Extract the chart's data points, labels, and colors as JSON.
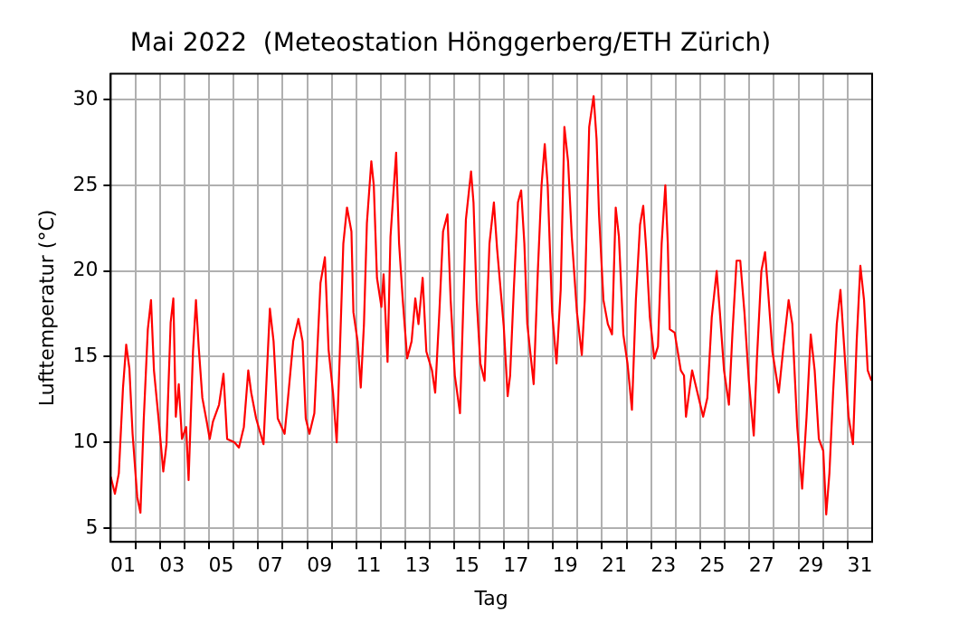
{
  "chart_data": {
    "type": "line",
    "title": "Mai 2022  (Meteostation Hönggerberg/ETH Zürich)",
    "xlabel": "Tag",
    "ylabel": "Lufttemperatur (°C)",
    "xlim": [
      0,
      31
    ],
    "ylim": [
      4.2,
      31.5
    ],
    "xticks": [
      {
        "value": 0.5,
        "label": "01"
      },
      {
        "value": 2.5,
        "label": "03"
      },
      {
        "value": 4.5,
        "label": "05"
      },
      {
        "value": 6.5,
        "label": "07"
      },
      {
        "value": 8.5,
        "label": "09"
      },
      {
        "value": 10.5,
        "label": "11"
      },
      {
        "value": 12.5,
        "label": "13"
      },
      {
        "value": 14.5,
        "label": "15"
      },
      {
        "value": 16.5,
        "label": "17"
      },
      {
        "value": 18.5,
        "label": "19"
      },
      {
        "value": 20.5,
        "label": "21"
      },
      {
        "value": 22.5,
        "label": "23"
      },
      {
        "value": 24.5,
        "label": "25"
      },
      {
        "value": 26.5,
        "label": "27"
      },
      {
        "value": 28.5,
        "label": "29"
      },
      {
        "value": 30.5,
        "label": "31"
      },
      {
        "value": 1,
        "label": null
      },
      {
        "value": 2,
        "label": null
      },
      {
        "value": 3,
        "label": null
      },
      {
        "value": 4,
        "label": null
      },
      {
        "value": 5,
        "label": null
      },
      {
        "value": 6,
        "label": null
      },
      {
        "value": 7,
        "label": null
      },
      {
        "value": 8,
        "label": null
      },
      {
        "value": 9,
        "label": null
      },
      {
        "value": 10,
        "label": null
      },
      {
        "value": 11,
        "label": null
      },
      {
        "value": 12,
        "label": null
      },
      {
        "value": 13,
        "label": null
      },
      {
        "value": 14,
        "label": null
      },
      {
        "value": 15,
        "label": null
      },
      {
        "value": 16,
        "label": null
      },
      {
        "value": 17,
        "label": null
      },
      {
        "value": 18,
        "label": null
      },
      {
        "value": 19,
        "label": null
      },
      {
        "value": 20,
        "label": null
      },
      {
        "value": 21,
        "label": null
      },
      {
        "value": 22,
        "label": null
      },
      {
        "value": 23,
        "label": null
      },
      {
        "value": 24,
        "label": null
      },
      {
        "value": 25,
        "label": null
      },
      {
        "value": 26,
        "label": null
      },
      {
        "value": 27,
        "label": null
      },
      {
        "value": 28,
        "label": null
      },
      {
        "value": 29,
        "label": null
      },
      {
        "value": 30,
        "label": null
      }
    ],
    "yticks": [
      5,
      10,
      15,
      20,
      25,
      30
    ],
    "grid": true,
    "legend": false,
    "marker": "none",
    "line_style": "solid",
    "series": [
      {
        "color": "#ff0000",
        "x": [
          0,
          0.17,
          0.33,
          0.5,
          0.63,
          0.76,
          0.89,
          1.08,
          1.21,
          1.34,
          1.51,
          1.64,
          1.76,
          1.94,
          2.14,
          2.27,
          2.44,
          2.55,
          2.65,
          2.77,
          2.9,
          3.07,
          3.17,
          3.35,
          3.47,
          3.58,
          3.73,
          3.91,
          4.03,
          4.16,
          4.41,
          4.59,
          4.74,
          5.04,
          5.22,
          5.42,
          5.6,
          5.72,
          5.92,
          6.22,
          6.48,
          6.63,
          6.8,
          7.08,
          7.18,
          7.43,
          7.64,
          7.81,
          7.94,
          8.09,
          8.29,
          8.54,
          8.72,
          8.87,
          9.05,
          9.2,
          9.32,
          9.47,
          9.62,
          9.8,
          9.88,
          10.05,
          10.18,
          10.31,
          10.43,
          10.61,
          10.71,
          10.84,
          11.02,
          11.11,
          11.27,
          11.39,
          11.62,
          11.74,
          11.89,
          12.07,
          12.25,
          12.4,
          12.53,
          12.7,
          12.85,
          13.08,
          13.21,
          13.38,
          13.53,
          13.71,
          13.84,
          14.01,
          14.22,
          14.46,
          14.67,
          14.77,
          14.9,
          15.05,
          15.22,
          15.42,
          15.6,
          15.73,
          16.0,
          16.16,
          16.26,
          16.41,
          16.58,
          16.71,
          16.84,
          16.96,
          17.22,
          17.39,
          17.54,
          17.67,
          17.79,
          17.97,
          18.15,
          18.32,
          18.47,
          18.62,
          18.77,
          18.98,
          19.18,
          19.3,
          19.48,
          19.66,
          19.78,
          19.88,
          20.06,
          20.24,
          20.41,
          20.56,
          20.69,
          20.87,
          21.04,
          21.22,
          21.38,
          21.55,
          21.68,
          21.8,
          21.95,
          22.13,
          22.28,
          22.43,
          22.58,
          22.68,
          22.76,
          22.96,
          23.21,
          23.34,
          23.42,
          23.67,
          23.92,
          24.12,
          24.29,
          24.47,
          24.67,
          24.8,
          24.97,
          25.17,
          25.31,
          25.48,
          25.63,
          25.8,
          25.98,
          26.18,
          26.31,
          26.49,
          26.64,
          26.76,
          26.94,
          27.2,
          27.39,
          27.6,
          27.75,
          27.95,
          28.15,
          28.33,
          28.5,
          28.66,
          28.83,
          29.01,
          29.13,
          29.26,
          29.41,
          29.56,
          29.71,
          29.86,
          30.04,
          30.22,
          30.37,
          30.52,
          30.67,
          30.82,
          30.97
        ],
        "values": [
          8.0,
          7.0,
          8.2,
          13.2,
          15.7,
          14.3,
          10.5,
          6.8,
          5.9,
          11.2,
          16.6,
          18.3,
          14.2,
          11.5,
          8.3,
          9.9,
          17.0,
          18.4,
          11.5,
          13.4,
          10.2,
          10.9,
          7.8,
          15.3,
          18.3,
          15.6,
          12.6,
          11.2,
          10.2,
          11.2,
          12.2,
          14.0,
          10.2,
          10.0,
          9.7,
          10.9,
          14.2,
          12.9,
          11.4,
          9.9,
          17.8,
          15.9,
          11.4,
          10.5,
          12.0,
          15.9,
          17.2,
          15.9,
          11.4,
          10.5,
          11.7,
          19.3,
          20.8,
          15.4,
          12.9,
          10.0,
          14.9,
          21.6,
          23.7,
          22.3,
          17.6,
          15.9,
          13.2,
          16.9,
          22.8,
          26.4,
          25.0,
          19.6,
          17.9,
          19.8,
          14.7,
          22.0,
          26.9,
          21.6,
          18.3,
          14.9,
          15.9,
          18.4,
          16.9,
          19.6,
          15.3,
          14.2,
          12.9,
          17.6,
          22.3,
          23.3,
          18.3,
          13.9,
          11.7,
          23.0,
          25.8,
          24.0,
          18.3,
          14.6,
          13.6,
          21.6,
          24.0,
          21.3,
          16.8,
          12.7,
          13.9,
          18.9,
          24.0,
          24.7,
          21.6,
          16.9,
          13.4,
          20.0,
          25.0,
          27.4,
          25.0,
          17.6,
          14.6,
          18.9,
          28.4,
          26.4,
          22.0,
          17.6,
          15.1,
          18.3,
          28.4,
          30.2,
          27.7,
          23.3,
          18.3,
          16.9,
          16.3,
          23.7,
          22.0,
          16.3,
          14.6,
          11.9,
          18.3,
          22.7,
          23.8,
          21.3,
          17.3,
          14.9,
          15.6,
          21.6,
          25.0,
          21.6,
          16.6,
          16.4,
          14.2,
          13.9,
          11.5,
          14.2,
          12.7,
          11.5,
          12.6,
          17.3,
          20.0,
          17.6,
          14.2,
          12.2,
          16.3,
          20.6,
          20.6,
          17.6,
          13.6,
          10.4,
          14.9,
          20.0,
          21.1,
          18.9,
          15.3,
          12.9,
          15.6,
          18.3,
          16.9,
          10.9,
          7.3,
          11.5,
          16.3,
          14.2,
          10.2,
          9.5,
          5.8,
          8.2,
          12.9,
          16.9,
          18.9,
          15.6,
          11.5,
          9.9,
          15.9,
          20.3,
          18.3,
          14.2,
          13.6
        ]
      }
    ]
  }
}
